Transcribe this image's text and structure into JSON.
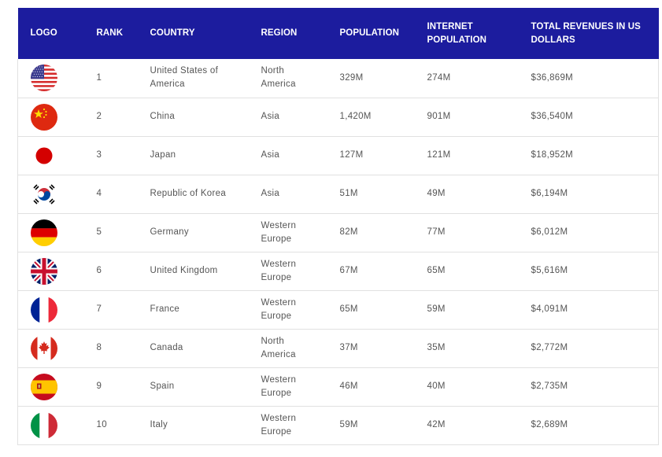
{
  "header": {
    "logo": "LOGO",
    "rank": "RANK",
    "country": "COUNTRY",
    "region": "REGION",
    "population": "POPULATION",
    "internet_population_1": "INTERNET",
    "internet_population_2": "POPULATION",
    "revenues_1": "TOTAL REVENUES IN US",
    "revenues_2": "DOLLARS"
  },
  "rows": [
    {
      "flag": "usa-flag-icon",
      "rank": "1",
      "country_1": "United States of",
      "country_2": "America",
      "region_1": "North",
      "region_2": "America",
      "population": "329M",
      "internet_population": "274M",
      "revenues": "$36,869M"
    },
    {
      "flag": "china-flag-icon",
      "rank": "2",
      "country_1": "China",
      "country_2": "",
      "region_1": "Asia",
      "region_2": "",
      "population": "1,420M",
      "internet_population": "901M",
      "revenues": "$36,540M"
    },
    {
      "flag": "japan-flag-icon",
      "rank": "3",
      "country_1": "Japan",
      "country_2": "",
      "region_1": "Asia",
      "region_2": "",
      "population": "127M",
      "internet_population": "121M",
      "revenues": "$18,952M"
    },
    {
      "flag": "korea-flag-icon",
      "rank": "4",
      "country_1": "Republic of Korea",
      "country_2": "",
      "region_1": "Asia",
      "region_2": "",
      "population": "51M",
      "internet_population": "49M",
      "revenues": "$6,194M"
    },
    {
      "flag": "germany-flag-icon",
      "rank": "5",
      "country_1": "Germany",
      "country_2": "",
      "region_1": "Western",
      "region_2": "Europe",
      "population": "82M",
      "internet_population": "77M",
      "revenues": "$6,012M"
    },
    {
      "flag": "uk-flag-icon",
      "rank": "6",
      "country_1": "United Kingdom",
      "country_2": "",
      "region_1": "Western",
      "region_2": "Europe",
      "population": "67M",
      "internet_population": "65M",
      "revenues": "$5,616M"
    },
    {
      "flag": "france-flag-icon",
      "rank": "7",
      "country_1": "France",
      "country_2": "",
      "region_1": "Western",
      "region_2": "Europe",
      "population": "65M",
      "internet_population": "59M",
      "revenues": "$4,091M"
    },
    {
      "flag": "canada-flag-icon",
      "rank": "8",
      "country_1": "Canada",
      "country_2": "",
      "region_1": "North",
      "region_2": "America",
      "population": "37M",
      "internet_population": "35M",
      "revenues": "$2,772M"
    },
    {
      "flag": "spain-flag-icon",
      "rank": "9",
      "country_1": "Spain",
      "country_2": "",
      "region_1": "Western",
      "region_2": "Europe",
      "population": "46M",
      "internet_population": "40M",
      "revenues": "$2,735M"
    },
    {
      "flag": "italy-flag-icon",
      "rank": "10",
      "country_1": "Italy",
      "country_2": "",
      "region_1": "Western",
      "region_2": "Europe",
      "population": "59M",
      "internet_population": "42M",
      "revenues": "$2,689M"
    }
  ],
  "colors": {
    "header_bg": "#1c1c9e",
    "header_text": "#ffffff",
    "cell_text": "#555555",
    "row_border": "#e1e1e1"
  }
}
